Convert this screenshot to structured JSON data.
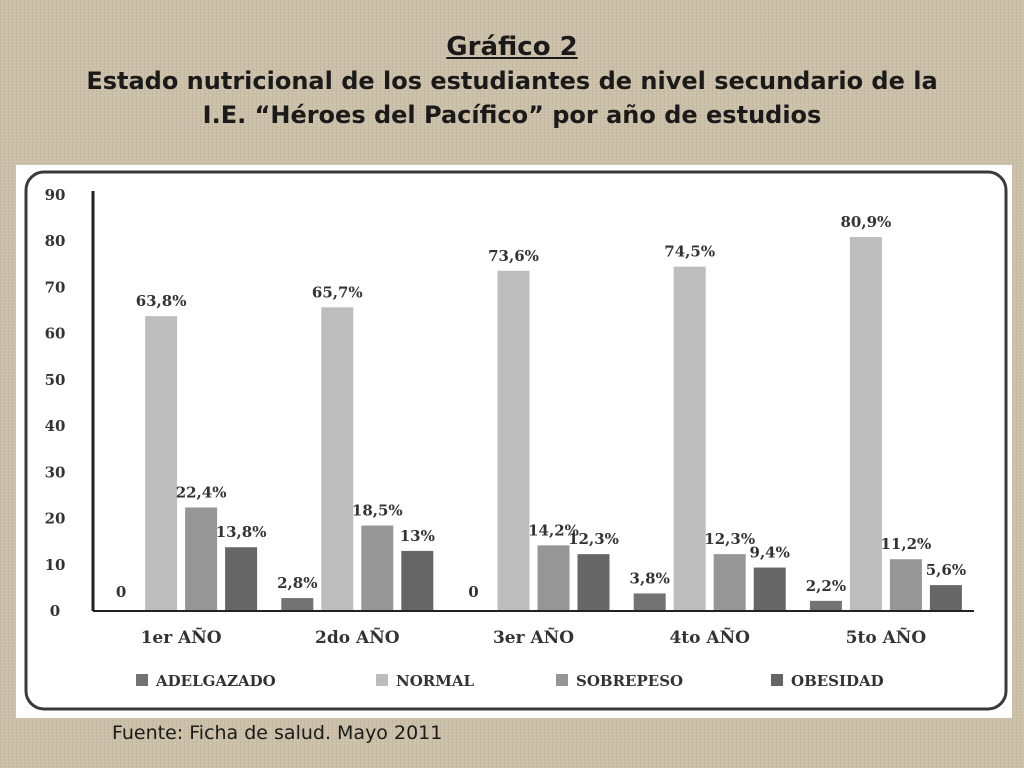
{
  "slide": {
    "title_line1": "Gráfico 2",
    "title_line2": "Estado nutricional de los estudiantes de nivel secundario de la",
    "title_line3": "I.E. “Héroes del Pacífico” por año de estudios",
    "source": "Fuente: Ficha de salud. Mayo 2011"
  },
  "colors": {
    "background": "#cbbfa8",
    "ADELGAZADO": "#737373",
    "NORMAL": "#bdbdbd",
    "SOBREPESO": "#969696",
    "OBESIDAD": "#666666"
  },
  "chart_data": {
    "type": "bar",
    "categories": [
      "1er AÑO",
      "2do AÑO",
      "3er AÑO",
      "4to AÑO",
      "5to AÑO"
    ],
    "series": [
      {
        "name": "ADELGAZADO",
        "values": [
          0,
          2.8,
          0,
          3.8,
          2.2
        ],
        "labels": [
          "0",
          "2,8%",
          "0",
          "3,8%",
          "2,2%"
        ]
      },
      {
        "name": "NORMAL",
        "values": [
          63.8,
          65.7,
          73.6,
          74.5,
          80.9
        ],
        "labels": [
          "63,8%",
          "65,7%",
          "73,6%",
          "74,5%",
          "80,9%"
        ]
      },
      {
        "name": "SOBREPESO",
        "values": [
          22.4,
          18.5,
          14.2,
          12.3,
          11.2
        ],
        "labels": [
          "22,4%",
          "18,5%",
          "14,2%",
          "12,3%",
          "11,2%"
        ]
      },
      {
        "name": "OBESIDAD",
        "values": [
          13.8,
          13,
          12.3,
          9.4,
          5.6
        ],
        "labels": [
          "13,8%",
          "13%",
          "12,3%",
          "9,4%",
          "5,6%"
        ]
      }
    ],
    "yticks": [
      "0",
      "10",
      "20",
      "30",
      "40",
      "50",
      "60",
      "70",
      "80",
      "90"
    ],
    "ylim": [
      0,
      90
    ],
    "grid": false,
    "legend_position": "bottom"
  }
}
